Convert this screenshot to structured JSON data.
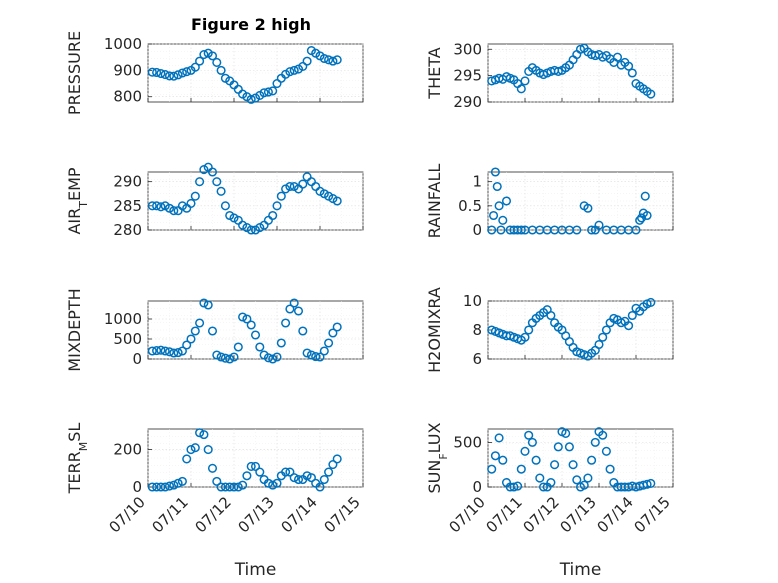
{
  "figure": {
    "title": "Figure 2 high",
    "marker_color": "#0072bd"
  },
  "chart_data": [
    {
      "type": "scatter",
      "ylabel": "PRESSURE",
      "title": "Figure 2 high",
      "xlabel": "",
      "xlim": [
        0,
        5
      ],
      "xticks": [],
      "ylim": [
        780,
        1000
      ],
      "yticks": [
        800,
        900,
        1000
      ],
      "grid": true,
      "x": [
        0.1,
        0.2,
        0.3,
        0.4,
        0.5,
        0.6,
        0.7,
        0.8,
        0.9,
        1.0,
        1.1,
        1.2,
        1.3,
        1.4,
        1.5,
        1.6,
        1.7,
        1.8,
        1.9,
        2.0,
        2.1,
        2.2,
        2.3,
        2.4,
        2.5,
        2.6,
        2.7,
        2.8,
        2.9,
        3.0,
        3.1,
        3.2,
        3.3,
        3.4,
        3.5,
        3.6,
        3.7,
        3.8,
        3.9,
        4.0,
        4.1,
        4.2,
        4.3,
        4.4
      ],
      "y": [
        893,
        892,
        888,
        884,
        879,
        878,
        883,
        890,
        895,
        900,
        912,
        935,
        960,
        965,
        955,
        930,
        900,
        870,
        860,
        845,
        828,
        810,
        800,
        790,
        795,
        805,
        815,
        818,
        822,
        850,
        870,
        885,
        895,
        900,
        905,
        915,
        935,
        975,
        965,
        955,
        945,
        940,
        935,
        940
      ]
    },
    {
      "type": "scatter",
      "ylabel": "THETA",
      "title": "",
      "xlabel": "",
      "xlim": [
        0,
        5
      ],
      "xticks": [],
      "ylim": [
        290,
        301
      ],
      "yticks": [
        290,
        295,
        300
      ],
      "grid": true,
      "x": [
        0.1,
        0.2,
        0.3,
        0.4,
        0.5,
        0.6,
        0.7,
        0.8,
        0.9,
        1.0,
        1.1,
        1.2,
        1.3,
        1.4,
        1.5,
        1.6,
        1.7,
        1.8,
        1.9,
        2.0,
        2.1,
        2.2,
        2.3,
        2.4,
        2.5,
        2.6,
        2.7,
        2.8,
        2.9,
        3.0,
        3.1,
        3.2,
        3.3,
        3.4,
        3.5,
        3.6,
        3.7,
        3.8,
        3.9,
        4.0,
        4.1,
        4.2,
        4.3,
        4.4
      ],
      "y": [
        294,
        294.2,
        294.5,
        294.3,
        294.8,
        294.5,
        294.2,
        293.5,
        292.5,
        294,
        295.8,
        296.5,
        296,
        295.5,
        295.2,
        295.5,
        295.8,
        296,
        295.8,
        296,
        296.5,
        297,
        298,
        299,
        300,
        300.2,
        299.5,
        299,
        298.8,
        299,
        298.5,
        298.8,
        298.2,
        297.5,
        298.5,
        297,
        297.5,
        296.8,
        295.5,
        293.5,
        293,
        292.5,
        292,
        291.5
      ]
    },
    {
      "type": "scatter",
      "ylabel": "AIR_TEMP",
      "title": "",
      "xlabel": "",
      "xlim": [
        0,
        5
      ],
      "xticks": [],
      "ylim": [
        280,
        292
      ],
      "yticks": [
        280,
        285,
        290
      ],
      "grid": true,
      "x": [
        0.1,
        0.2,
        0.3,
        0.4,
        0.5,
        0.6,
        0.7,
        0.8,
        0.9,
        1.0,
        1.1,
        1.2,
        1.3,
        1.4,
        1.5,
        1.6,
        1.7,
        1.8,
        1.9,
        2.0,
        2.1,
        2.2,
        2.3,
        2.4,
        2.5,
        2.6,
        2.7,
        2.8,
        2.9,
        3.0,
        3.1,
        3.2,
        3.3,
        3.4,
        3.5,
        3.6,
        3.7,
        3.8,
        3.9,
        4.0,
        4.1,
        4.2,
        4.3,
        4.4
      ],
      "y": [
        285,
        285,
        284.8,
        285,
        284.5,
        284,
        284,
        285,
        284.5,
        285.5,
        287,
        290,
        292.5,
        293,
        292,
        290,
        288,
        285,
        283,
        282.5,
        282,
        281,
        280.5,
        280,
        280,
        280.5,
        281,
        282,
        283,
        285,
        287,
        288.5,
        289,
        289,
        288.5,
        289.5,
        291,
        290,
        289,
        288,
        287.5,
        287,
        286.5,
        286
      ]
    },
    {
      "type": "scatter",
      "ylabel": "RAINFALL",
      "title": "",
      "xlabel": "",
      "xlim": [
        0,
        5
      ],
      "xticks": [],
      "ylim": [
        0,
        1.2
      ],
      "yticks": [
        0,
        0.5,
        1
      ],
      "grid": true,
      "x": [
        0.1,
        0.15,
        0.2,
        0.25,
        0.3,
        0.35,
        0.4,
        0.5,
        0.6,
        0.7,
        0.8,
        0.9,
        1.0,
        1.2,
        1.4,
        1.6,
        1.8,
        2.0,
        2.2,
        2.4,
        2.6,
        2.7,
        2.8,
        2.9,
        3.0,
        3.2,
        3.4,
        3.6,
        3.8,
        4.0,
        4.1,
        4.15,
        4.2,
        4.25,
        4.3
      ],
      "y": [
        0,
        0.3,
        1.2,
        0.9,
        0.5,
        0,
        0.2,
        0.6,
        0,
        0,
        0,
        0,
        0,
        0,
        0,
        0,
        0,
        0,
        0,
        0,
        0.5,
        0.45,
        0,
        0,
        0.1,
        0,
        0,
        0,
        0,
        0,
        0.2,
        0.25,
        0.35,
        0.7,
        0.3
      ]
    },
    {
      "type": "scatter",
      "ylabel": "MIXDEPTH",
      "title": "",
      "xlabel": "",
      "xlim": [
        0,
        5
      ],
      "xticks": [],
      "ylim": [
        0,
        1450
      ],
      "yticks": [
        0,
        500,
        1000
      ],
      "grid": true,
      "x": [
        0.1,
        0.2,
        0.3,
        0.4,
        0.5,
        0.6,
        0.7,
        0.8,
        0.9,
        1.0,
        1.1,
        1.2,
        1.3,
        1.4,
        1.5,
        1.6,
        1.7,
        1.8,
        1.9,
        2.0,
        2.1,
        2.2,
        2.3,
        2.4,
        2.5,
        2.6,
        2.7,
        2.8,
        2.9,
        3.0,
        3.1,
        3.2,
        3.3,
        3.4,
        3.5,
        3.6,
        3.7,
        3.8,
        3.9,
        4.0,
        4.1,
        4.2,
        4.3,
        4.4
      ],
      "y": [
        200,
        210,
        220,
        200,
        180,
        150,
        160,
        200,
        350,
        500,
        700,
        900,
        1400,
        1350,
        700,
        100,
        50,
        20,
        0,
        50,
        300,
        1050,
        1000,
        850,
        600,
        300,
        100,
        30,
        0,
        50,
        400,
        900,
        1250,
        1400,
        1200,
        700,
        150,
        100,
        60,
        50,
        200,
        400,
        650,
        800
      ]
    },
    {
      "type": "scatter",
      "ylabel": "H2OMIXRA",
      "title": "",
      "xlabel": "",
      "xlim": [
        0,
        5
      ],
      "xticks": [],
      "ylim": [
        6,
        10
      ],
      "yticks": [
        6,
        8,
        10
      ],
      "grid": true,
      "x": [
        0.1,
        0.2,
        0.3,
        0.4,
        0.5,
        0.6,
        0.7,
        0.8,
        0.9,
        1.0,
        1.1,
        1.2,
        1.3,
        1.4,
        1.5,
        1.6,
        1.7,
        1.8,
        1.9,
        2.0,
        2.1,
        2.2,
        2.3,
        2.4,
        2.5,
        2.6,
        2.7,
        2.8,
        2.9,
        3.0,
        3.1,
        3.2,
        3.3,
        3.4,
        3.5,
        3.6,
        3.7,
        3.8,
        3.9,
        4.0,
        4.1,
        4.2,
        4.3,
        4.4
      ],
      "y": [
        8,
        7.9,
        7.8,
        7.7,
        7.6,
        7.6,
        7.5,
        7.4,
        7.3,
        7.5,
        8.0,
        8.5,
        8.8,
        9.0,
        9.2,
        9.4,
        9.0,
        8.5,
        8.2,
        8.0,
        7.6,
        7.2,
        6.8,
        6.5,
        6.4,
        6.3,
        6.2,
        6.4,
        6.6,
        7.0,
        7.5,
        8.0,
        8.5,
        8.8,
        8.7,
        8.5,
        8.6,
        8.3,
        9.0,
        9.5,
        9.3,
        9.6,
        9.8,
        9.9
      ]
    },
    {
      "type": "scatter",
      "ylabel": "TERR_MSL",
      "title": "",
      "xlabel": "Time",
      "xlim": [
        0,
        5
      ],
      "xticks": [
        "07/10",
        "07/11",
        "07/12",
        "07/13",
        "07/14",
        "07/15"
      ],
      "ylim": [
        0,
        310
      ],
      "yticks": [
        0,
        200
      ],
      "grid": true,
      "x": [
        0.1,
        0.2,
        0.3,
        0.4,
        0.5,
        0.6,
        0.7,
        0.8,
        0.9,
        1.0,
        1.1,
        1.2,
        1.3,
        1.4,
        1.5,
        1.6,
        1.7,
        1.8,
        1.9,
        2.0,
        2.1,
        2.2,
        2.3,
        2.4,
        2.5,
        2.6,
        2.7,
        2.8,
        2.9,
        3.0,
        3.1,
        3.2,
        3.3,
        3.4,
        3.5,
        3.6,
        3.7,
        3.8,
        3.9,
        4.0,
        4.1,
        4.2,
        4.3,
        4.4
      ],
      "y": [
        0,
        0,
        0,
        0,
        5,
        10,
        20,
        30,
        150,
        200,
        210,
        290,
        280,
        200,
        100,
        30,
        0,
        0,
        0,
        0,
        0,
        10,
        60,
        110,
        110,
        80,
        40,
        20,
        10,
        20,
        60,
        80,
        80,
        50,
        40,
        40,
        60,
        50,
        20,
        0,
        40,
        80,
        120,
        150
      ]
    },
    {
      "type": "scatter",
      "ylabel": "SUN_FLUX",
      "title": "",
      "xlabel": "Time",
      "xlim": [
        0,
        5
      ],
      "xticks": [
        "07/10",
        "07/11",
        "07/12",
        "07/13",
        "07/14",
        "07/15"
      ],
      "ylim": [
        0,
        650
      ],
      "yticks": [
        0,
        500
      ],
      "grid": true,
      "x": [
        0.1,
        0.2,
        0.3,
        0.4,
        0.5,
        0.6,
        0.7,
        0.8,
        0.9,
        1.0,
        1.1,
        1.2,
        1.3,
        1.4,
        1.5,
        1.6,
        1.7,
        1.8,
        1.9,
        2.0,
        2.1,
        2.2,
        2.3,
        2.4,
        2.5,
        2.6,
        2.7,
        2.8,
        2.9,
        3.0,
        3.1,
        3.2,
        3.3,
        3.4,
        3.5,
        3.6,
        3.7,
        3.8,
        3.9,
        4.0,
        4.1,
        4.2,
        4.3,
        4.4
      ],
      "y": [
        200,
        350,
        550,
        300,
        50,
        0,
        0,
        10,
        200,
        400,
        580,
        500,
        300,
        100,
        0,
        0,
        50,
        250,
        450,
        620,
        600,
        450,
        250,
        80,
        0,
        20,
        100,
        300,
        500,
        620,
        580,
        400,
        200,
        50,
        0,
        0,
        0,
        0,
        10,
        0,
        10,
        20,
        30,
        40
      ]
    }
  ]
}
